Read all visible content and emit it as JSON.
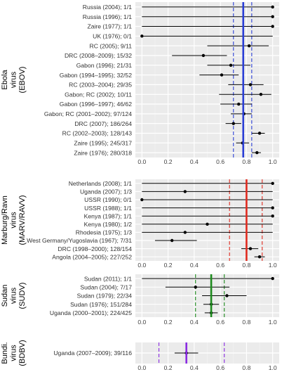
{
  "chart_data": {
    "type": "forest",
    "x_ticks": [
      "0.0",
      "0.2",
      "0.4",
      "0.6",
      "0.8",
      "1.0"
    ],
    "xlim": [
      -0.05,
      1.05
    ],
    "grid": true,
    "panels": [
      {
        "group_label": [
          "Ebola",
          "virus",
          "(EBOV)"
        ],
        "mean_color": "#2b3fd6",
        "mean": 0.775,
        "ci": [
          0.7,
          0.84
        ],
        "rows": [
          {
            "label": "Russia (2004); 1/1",
            "est": 1.0,
            "lo": 0.0,
            "hi": 1.0
          },
          {
            "label": "Russia (1996); 1/1",
            "est": 1.0,
            "lo": 0.0,
            "hi": 1.0
          },
          {
            "label": "Zaire (1977); 1/1",
            "est": 1.0,
            "lo": 0.0,
            "hi": 1.0
          },
          {
            "label": "UK (1976); 0/1",
            "est": 0.0,
            "lo": 0.0,
            "hi": 1.0
          },
          {
            "label": "RC (2005); 9/11",
            "est": 0.82,
            "lo": 0.5,
            "hi": 0.97
          },
          {
            "label": "DRC (2008–2009); 15/32",
            "est": 0.47,
            "lo": 0.23,
            "hi": 0.65
          },
          {
            "label": "Gabon (1996); 21/31",
            "est": 0.68,
            "lo": 0.5,
            "hi": 0.83
          },
          {
            "label": "Gabon (1994–1995); 32/52",
            "est": 0.61,
            "lo": 0.44,
            "hi": 0.74
          },
          {
            "label": "RC (2003–2004); 29/35",
            "est": 0.83,
            "lo": 0.66,
            "hi": 0.93
          },
          {
            "label": "Gabon; RC (2002); 10/11",
            "est": 0.91,
            "lo": 0.59,
            "hi": 0.99
          },
          {
            "label": "Gabon (1996–1997); 46/62",
            "est": 0.74,
            "lo": 0.6,
            "hi": 0.84
          },
          {
            "label": "Gabon; RC (2001–2002); 97/124",
            "est": 0.78,
            "lo": 0.68,
            "hi": 0.84
          },
          {
            "label": "DRC (2007); 186/264",
            "est": 0.7,
            "lo": 0.64,
            "hi": 0.76
          },
          {
            "label": "RC (2002–2003); 128/143",
            "est": 0.9,
            "lo": 0.84,
            "hi": 0.94
          },
          {
            "label": "Zaire (1995); 245/317",
            "est": 0.77,
            "lo": 0.72,
            "hi": 0.82
          },
          {
            "label": "Zaire (1976); 280/318",
            "est": 0.88,
            "lo": 0.84,
            "hi": 0.91
          }
        ]
      },
      {
        "group_label": [
          "Marburg/Ravn",
          "virus",
          "(MARV/RAVV)"
        ],
        "mean_color": "#e02b20",
        "mean": 0.8,
        "ci": [
          0.67,
          0.92
        ],
        "rows": [
          {
            "label": "Netherlands (2008); 1/1",
            "est": 1.0,
            "lo": 0.0,
            "hi": 1.0
          },
          {
            "label": "Uganda (2007); 1/3",
            "est": 0.33,
            "lo": 0.0,
            "hi": 1.0
          },
          {
            "label": "USSR (1990); 0/1",
            "est": 0.0,
            "lo": 0.0,
            "hi": 1.0
          },
          {
            "label": "USSR (1988); 1/1",
            "est": 1.0,
            "lo": 0.0,
            "hi": 1.0
          },
          {
            "label": "Kenya (1987); 1/1",
            "est": 1.0,
            "lo": 0.0,
            "hi": 1.0
          },
          {
            "label": "Kenya (1980); 1/2",
            "est": 0.5,
            "lo": 0.0,
            "hi": 1.0
          },
          {
            "label": "Rhodesia (1975); 1/3",
            "est": 0.33,
            "lo": 0.0,
            "hi": 1.0
          },
          {
            "label": "West Germany/Yugoslavia (1967); 7/31",
            "est": 0.23,
            "lo": 0.1,
            "hi": 0.42
          },
          {
            "label": "DRC (1998–2000); 128/154",
            "est": 0.83,
            "lo": 0.76,
            "hi": 0.89
          },
          {
            "label": "Angola (2004–2005); 227/252",
            "est": 0.9,
            "lo": 0.86,
            "hi": 0.94
          }
        ]
      },
      {
        "group_label": [
          "Sudan",
          "virus",
          "(SUDV)"
        ],
        "mean_color": "#1d8a1d",
        "mean": 0.53,
        "ci": [
          0.41,
          0.63
        ],
        "rows": [
          {
            "label": "Sudan (2011); 1/1",
            "est": 1.0,
            "lo": 0.0,
            "hi": 1.0
          },
          {
            "label": "Sudan (2004); 7/17",
            "est": 0.41,
            "lo": 0.18,
            "hi": 0.67
          },
          {
            "label": "Sudan (1979); 22/34",
            "est": 0.65,
            "lo": 0.46,
            "hi": 0.8
          },
          {
            "label": "Sudan (1976); 151/284",
            "est": 0.53,
            "lo": 0.47,
            "hi": 0.59
          },
          {
            "label": "Uganda (2000–2001); 224/425",
            "est": 0.53,
            "lo": 0.48,
            "hi": 0.58
          }
        ]
      },
      {
        "group_label": [
          "Bundi.",
          "virus",
          "(BDBV)"
        ],
        "mean_color": "#8a2be2",
        "mean": 0.34,
        "ci": [
          0.13,
          0.63
        ],
        "rows": [
          {
            "label": "Uganda (2007–2009); 39/116",
            "est": 0.34,
            "lo": 0.25,
            "hi": 0.43
          }
        ]
      }
    ]
  }
}
